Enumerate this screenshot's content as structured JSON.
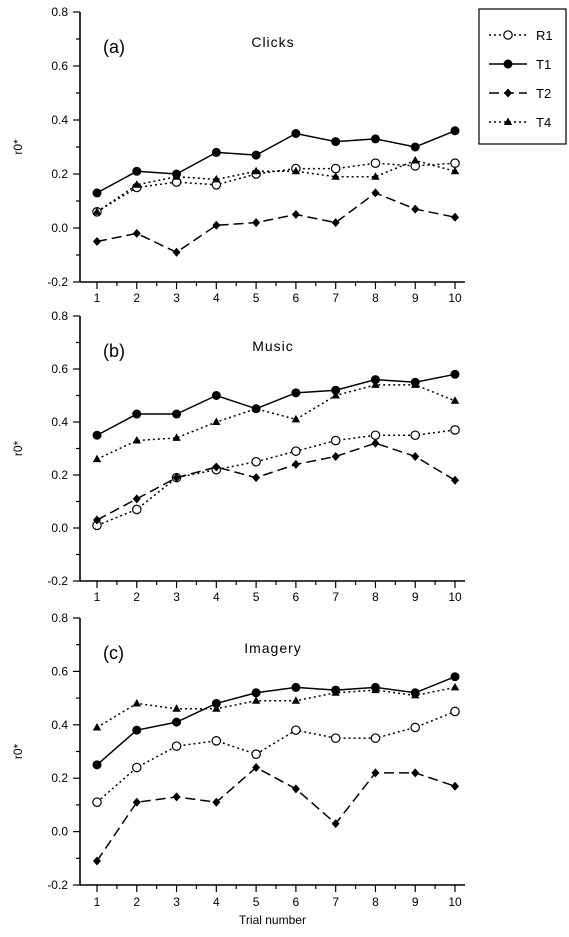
{
  "chart_data": [
    {
      "type": "line",
      "panel_letter": "(a)",
      "title": "Clicks",
      "ylabel": "r0*",
      "xlabel": "",
      "x": [
        1,
        2,
        3,
        4,
        5,
        6,
        7,
        8,
        9,
        10
      ],
      "ylim": [
        -0.2,
        0.8
      ],
      "yticks": [
        "0.8",
        "0.6",
        "0.4",
        "0.2",
        "0.0",
        "-0.2"
      ],
      "ytick_values": [
        0.8,
        0.6,
        0.4,
        0.2,
        0.0,
        -0.2
      ],
      "xticks": [
        "1",
        "2",
        "3",
        "4",
        "5",
        "6",
        "7",
        "8",
        "9",
        "10"
      ],
      "series": [
        {
          "name": "R1",
          "values": [
            0.06,
            0.15,
            0.17,
            0.16,
            0.2,
            0.22,
            0.22,
            0.24,
            0.23,
            0.24
          ]
        },
        {
          "name": "T1",
          "values": [
            0.13,
            0.21,
            0.2,
            0.28,
            0.27,
            0.35,
            0.32,
            0.33,
            0.3,
            0.36
          ]
        },
        {
          "name": "T2",
          "values": [
            -0.05,
            -0.02,
            -0.09,
            0.01,
            0.02,
            0.05,
            0.02,
            0.13,
            0.07,
            0.04
          ]
        },
        {
          "name": "T4",
          "values": [
            0.06,
            0.16,
            0.19,
            0.18,
            0.21,
            0.21,
            0.19,
            0.19,
            0.25,
            0.21
          ]
        }
      ]
    },
    {
      "type": "line",
      "panel_letter": "(b)",
      "title": "Music",
      "ylabel": "r0*",
      "xlabel": "",
      "x": [
        1,
        2,
        3,
        4,
        5,
        6,
        7,
        8,
        9,
        10
      ],
      "ylim": [
        -0.2,
        0.8
      ],
      "yticks": [
        "0.8",
        "0.6",
        "0.4",
        "0.2",
        "0.0",
        "-0.2"
      ],
      "ytick_values": [
        0.8,
        0.6,
        0.4,
        0.2,
        0.0,
        -0.2
      ],
      "xticks": [
        "1",
        "2",
        "3",
        "4",
        "5",
        "6",
        "7",
        "8",
        "9",
        "10"
      ],
      "series": [
        {
          "name": "R1",
          "values": [
            0.01,
            0.07,
            0.19,
            0.22,
            0.25,
            0.29,
            0.33,
            0.35,
            0.35,
            0.37
          ]
        },
        {
          "name": "T1",
          "values": [
            0.35,
            0.43,
            0.43,
            0.5,
            0.45,
            0.51,
            0.52,
            0.56,
            0.55,
            0.58
          ]
        },
        {
          "name": "T2",
          "values": [
            0.03,
            0.11,
            0.19,
            0.23,
            0.19,
            0.24,
            0.27,
            0.32,
            0.27,
            0.18
          ]
        },
        {
          "name": "T4",
          "values": [
            0.26,
            0.33,
            0.34,
            0.4,
            0.45,
            0.41,
            0.5,
            0.54,
            0.54,
            0.48
          ]
        }
      ]
    },
    {
      "type": "line",
      "panel_letter": "(c)",
      "title": "Imagery",
      "ylabel": "r0*",
      "xlabel": "Trial number",
      "x": [
        1,
        2,
        3,
        4,
        5,
        6,
        7,
        8,
        9,
        10
      ],
      "ylim": [
        -0.2,
        0.8
      ],
      "yticks": [
        "0.8",
        "0.6",
        "0.4",
        "0.2",
        "0.0",
        "-0.2"
      ],
      "ytick_values": [
        0.8,
        0.6,
        0.4,
        0.2,
        0.0,
        -0.2
      ],
      "xticks": [
        "1",
        "2",
        "3",
        "4",
        "5",
        "6",
        "7",
        "8",
        "9",
        "10"
      ],
      "series": [
        {
          "name": "R1",
          "values": [
            0.11,
            0.24,
            0.32,
            0.34,
            0.29,
            0.38,
            0.35,
            0.35,
            0.39,
            0.45
          ]
        },
        {
          "name": "T1",
          "values": [
            0.25,
            0.38,
            0.41,
            0.48,
            0.52,
            0.54,
            0.53,
            0.54,
            0.52,
            0.58
          ]
        },
        {
          "name": "T2",
          "values": [
            -0.11,
            0.11,
            0.13,
            0.11,
            0.24,
            0.16,
            0.03,
            0.22,
            0.22,
            0.17
          ]
        },
        {
          "name": "T4",
          "values": [
            0.39,
            0.48,
            0.46,
            0.46,
            0.49,
            0.49,
            0.52,
            0.53,
            0.51,
            0.54
          ]
        }
      ]
    }
  ],
  "legend": {
    "placement": "top-right",
    "entries": [
      {
        "label": "R1",
        "marker": "open-circle",
        "dash": "dotted"
      },
      {
        "label": "T1",
        "marker": "filled-circle",
        "dash": "solid"
      },
      {
        "label": "T2",
        "marker": "filled-diamond",
        "dash": "dashed"
      },
      {
        "label": "T4",
        "marker": "filled-triangle",
        "dash": "dotted"
      }
    ]
  }
}
